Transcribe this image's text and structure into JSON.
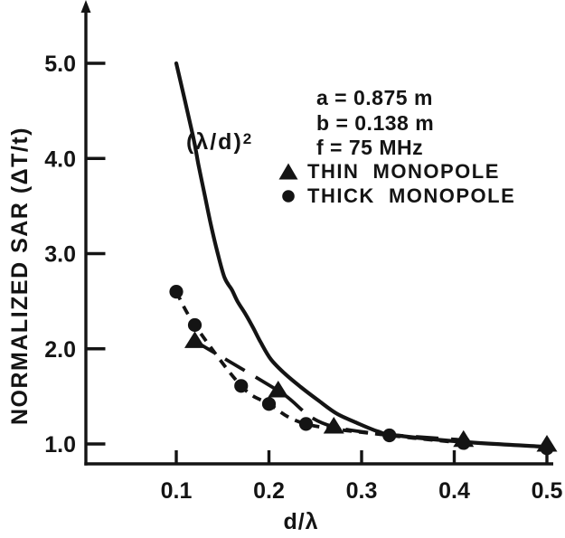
{
  "chart_data": {
    "type": "line",
    "title": "",
    "xlabel": "d/λ",
    "ylabel": "NORMALIZED SAR (ΔT/t)",
    "curve_label": {
      "base": "(λ/d)",
      "sup": "2"
    },
    "x_ticks": [
      0.1,
      0.2,
      0.3,
      0.4,
      0.5
    ],
    "x_tick_labels": [
      "0.1",
      "0.2",
      "0.3",
      "0.4",
      "0.5"
    ],
    "y_ticks": [
      1.0,
      2.0,
      3.0,
      4.0,
      5.0
    ],
    "y_tick_labels": [
      "1.0",
      "2.0",
      "3.0",
      "4.0",
      "5.0"
    ],
    "xlim": [
      0.0,
      0.505
    ],
    "ylim": [
      0.78,
      5.65
    ],
    "grid": false,
    "legend_position": "upper-right",
    "params_text": [
      "a = 0.875 m",
      "b = 0.138 m",
      "f = 75 MHz"
    ],
    "series": [
      {
        "name": "(λ/d)² reference curve",
        "line": "solid",
        "marker": "none",
        "points": [
          [
            0.1,
            5.0
          ],
          [
            0.118,
            4.24
          ],
          [
            0.124,
            3.93
          ],
          [
            0.131,
            3.6
          ],
          [
            0.137,
            3.32
          ],
          [
            0.144,
            3.03
          ],
          [
            0.152,
            2.75
          ],
          [
            0.16,
            2.62
          ],
          [
            0.166,
            2.5
          ],
          [
            0.175,
            2.36
          ],
          [
            0.183,
            2.22
          ],
          [
            0.191,
            2.07
          ],
          [
            0.202,
            1.89
          ],
          [
            0.217,
            1.74
          ],
          [
            0.234,
            1.6
          ],
          [
            0.253,
            1.46
          ],
          [
            0.273,
            1.32
          ],
          [
            0.295,
            1.22
          ],
          [
            0.318,
            1.13
          ],
          [
            0.337,
            1.09
          ],
          [
            0.412,
            1.02
          ],
          [
            0.5,
            0.97
          ]
        ]
      },
      {
        "name": "THIN MONOPOLE",
        "line": "long-dash",
        "marker": "triangle",
        "points": [
          [
            0.12,
            2.08
          ],
          [
            0.21,
            1.56
          ],
          [
            0.27,
            1.18
          ],
          [
            0.41,
            1.04
          ],
          [
            0.5,
            0.99
          ]
        ],
        "line_end_index": 3
      },
      {
        "name": "THICK MONOPOLE",
        "line": "short-dash",
        "marker": "circle",
        "points": [
          [
            0.1,
            2.6
          ],
          [
            0.12,
            2.25
          ],
          [
            0.17,
            1.61
          ],
          [
            0.2,
            1.42
          ],
          [
            0.24,
            1.21
          ],
          [
            0.33,
            1.09
          ],
          [
            0.41,
            1.01
          ],
          [
            0.5,
            0.955
          ]
        ],
        "line_end_index": 6
      }
    ],
    "legend": [
      {
        "marker": "triangle",
        "label": "THIN  MONOPOLE"
      },
      {
        "marker": "circle",
        "label": "THICK  MONOPOLE"
      }
    ]
  }
}
